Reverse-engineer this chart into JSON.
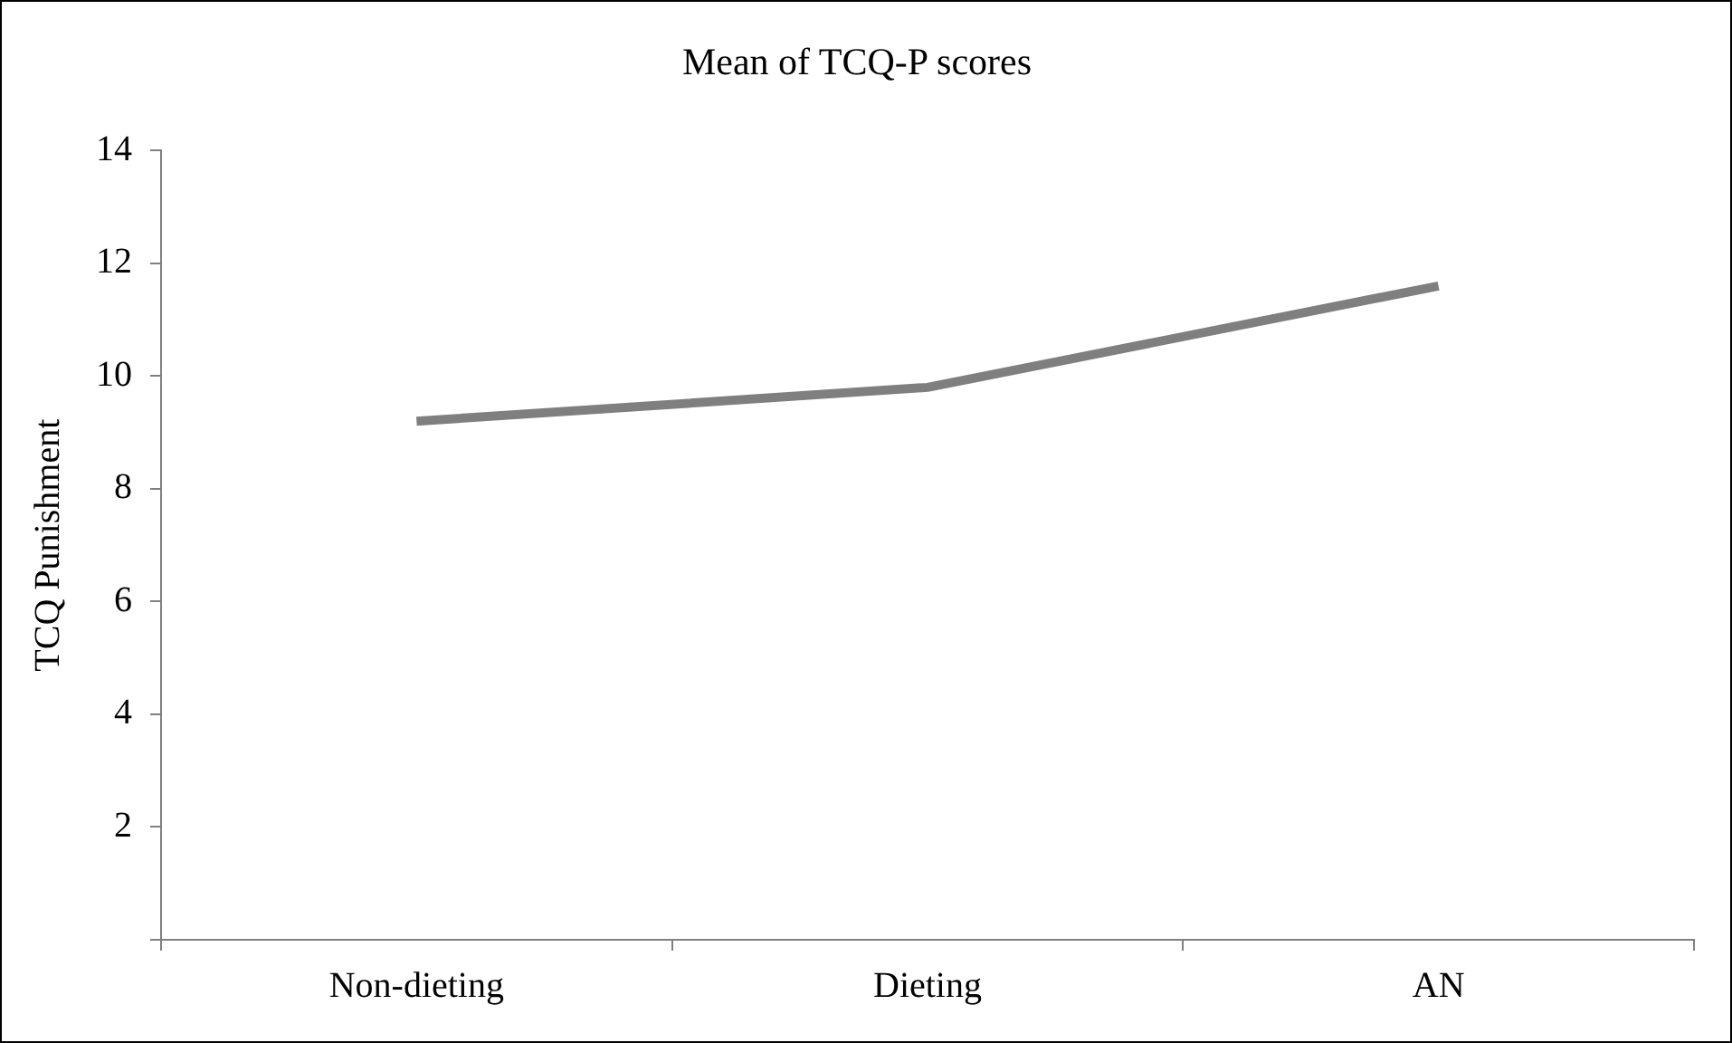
{
  "chart_data": {
    "type": "line",
    "title": "Mean of TCQ-P scores",
    "ylabel": "TCQ Punishment",
    "categories": [
      "Non-dieting",
      "Dieting",
      "AN"
    ],
    "series": [
      {
        "color": "#7f7f7f",
        "values": [
          9.2,
          9.8,
          11.6
        ]
      }
    ],
    "ylim": [
      0,
      14
    ],
    "yticks": [
      {
        "value": 0,
        "label": null
      },
      2,
      4,
      6,
      8,
      10,
      12,
      14
    ],
    "grid": false,
    "legend": false,
    "marker": "none",
    "line_style": "solid"
  }
}
